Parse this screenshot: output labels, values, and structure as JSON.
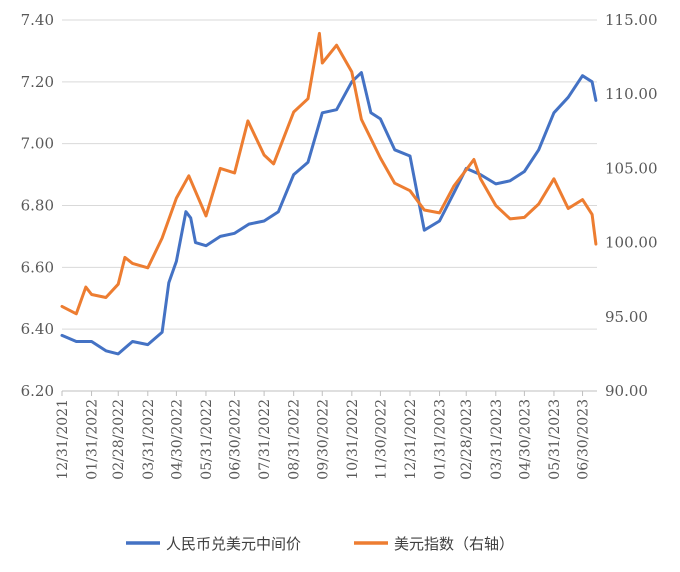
{
  "chart_data": {
    "type": "line",
    "title": "",
    "left_axis": {
      "ylim": [
        6.2,
        7.4
      ],
      "ticks": [
        "6.20",
        "6.40",
        "6.60",
        "6.80",
        "7.00",
        "7.20",
        "7.40"
      ]
    },
    "right_axis": {
      "ylim": [
        90,
        115
      ],
      "ticks": [
        "90.00",
        "95.00",
        "100.00",
        "105.00",
        "110.00",
        "115.00"
      ]
    },
    "x_ticks": [
      "12/31/2021",
      "01/31/2022",
      "02/28/2022",
      "03/31/2022",
      "04/30/2022",
      "05/31/2022",
      "06/30/2022",
      "07/31/2022",
      "08/31/2022",
      "09/30/2022",
      "10/31/2022",
      "11/30/2022",
      "12/31/2022",
      "01/31/2023",
      "02/28/2023",
      "03/31/2023",
      "04/30/2023",
      "05/31/2023",
      "06/30/2023"
    ],
    "grid": "horizontal",
    "legend_position": "bottom",
    "series": [
      {
        "name": "人民币兑美元中间价",
        "axis": "left",
        "color": "#4472C4",
        "points": [
          [
            "12/31/2021",
            6.38
          ],
          [
            "01/15/2022",
            6.36
          ],
          [
            "01/31/2022",
            6.36
          ],
          [
            "02/15/2022",
            6.33
          ],
          [
            "02/28/2022",
            6.32
          ],
          [
            "03/15/2022",
            6.36
          ],
          [
            "03/31/2022",
            6.35
          ],
          [
            "04/15/2022",
            6.39
          ],
          [
            "04/22/2022",
            6.55
          ],
          [
            "04/30/2022",
            6.62
          ],
          [
            "05/10/2022",
            6.78
          ],
          [
            "05/15/2022",
            6.76
          ],
          [
            "05/20/2022",
            6.68
          ],
          [
            "05/31/2022",
            6.67
          ],
          [
            "06/15/2022",
            6.7
          ],
          [
            "06/30/2022",
            6.71
          ],
          [
            "07/15/2022",
            6.74
          ],
          [
            "07/31/2022",
            6.75
          ],
          [
            "08/15/2022",
            6.78
          ],
          [
            "08/31/2022",
            6.9
          ],
          [
            "09/15/2022",
            6.94
          ],
          [
            "09/30/2022",
            7.1
          ],
          [
            "10/15/2022",
            7.11
          ],
          [
            "10/31/2022",
            7.2
          ],
          [
            "11/10/2022",
            7.23
          ],
          [
            "11/20/2022",
            7.1
          ],
          [
            "11/30/2022",
            7.08
          ],
          [
            "12/15/2022",
            6.98
          ],
          [
            "12/31/2022",
            6.96
          ],
          [
            "01/15/2023",
            6.72
          ],
          [
            "01/31/2023",
            6.75
          ],
          [
            "02/15/2023",
            6.84
          ],
          [
            "02/28/2023",
            6.92
          ],
          [
            "03/15/2023",
            6.9
          ],
          [
            "03/31/2023",
            6.87
          ],
          [
            "04/15/2023",
            6.88
          ],
          [
            "04/30/2023",
            6.91
          ],
          [
            "05/15/2023",
            6.98
          ],
          [
            "05/31/2023",
            7.1
          ],
          [
            "06/15/2023",
            7.15
          ],
          [
            "06/30/2023",
            7.22
          ],
          [
            "07/10/2023",
            7.2
          ],
          [
            "07/14/2023",
            7.14
          ]
        ]
      },
      {
        "name": "美元指数（右轴）",
        "axis": "right",
        "color": "#ED7D31",
        "points": [
          [
            "12/31/2021",
            95.7
          ],
          [
            "01/15/2022",
            95.2
          ],
          [
            "01/25/2022",
            97.0
          ],
          [
            "01/31/2022",
            96.5
          ],
          [
            "02/15/2022",
            96.3
          ],
          [
            "02/28/2022",
            97.2
          ],
          [
            "03/07/2022",
            99.0
          ],
          [
            "03/15/2022",
            98.6
          ],
          [
            "03/31/2022",
            98.3
          ],
          [
            "04/15/2022",
            100.3
          ],
          [
            "04/30/2022",
            103.0
          ],
          [
            "05/13/2022",
            104.5
          ],
          [
            "05/31/2022",
            101.8
          ],
          [
            "06/15/2022",
            105.0
          ],
          [
            "06/30/2022",
            104.7
          ],
          [
            "07/14/2022",
            108.2
          ],
          [
            "07/31/2022",
            105.9
          ],
          [
            "08/10/2022",
            105.3
          ],
          [
            "08/31/2022",
            108.8
          ],
          [
            "09/15/2022",
            109.7
          ],
          [
            "09/27/2022",
            114.1
          ],
          [
            "09/30/2022",
            112.1
          ],
          [
            "10/15/2022",
            113.3
          ],
          [
            "10/31/2022",
            111.5
          ],
          [
            "11/10/2022",
            108.3
          ],
          [
            "11/30/2022",
            105.7
          ],
          [
            "12/15/2022",
            104.0
          ],
          [
            "12/31/2022",
            103.5
          ],
          [
            "01/15/2023",
            102.2
          ],
          [
            "01/31/2023",
            102.0
          ],
          [
            "02/15/2023",
            103.8
          ],
          [
            "02/28/2023",
            104.9
          ],
          [
            "03/08/2023",
            105.6
          ],
          [
            "03/15/2023",
            104.3
          ],
          [
            "03/31/2023",
            102.5
          ],
          [
            "04/15/2023",
            101.6
          ],
          [
            "04/30/2023",
            101.7
          ],
          [
            "05/15/2023",
            102.6
          ],
          [
            "05/31/2023",
            104.3
          ],
          [
            "06/15/2023",
            102.3
          ],
          [
            "06/30/2023",
            102.9
          ],
          [
            "07/10/2023",
            101.9
          ],
          [
            "07/14/2023",
            99.9
          ]
        ]
      }
    ]
  }
}
